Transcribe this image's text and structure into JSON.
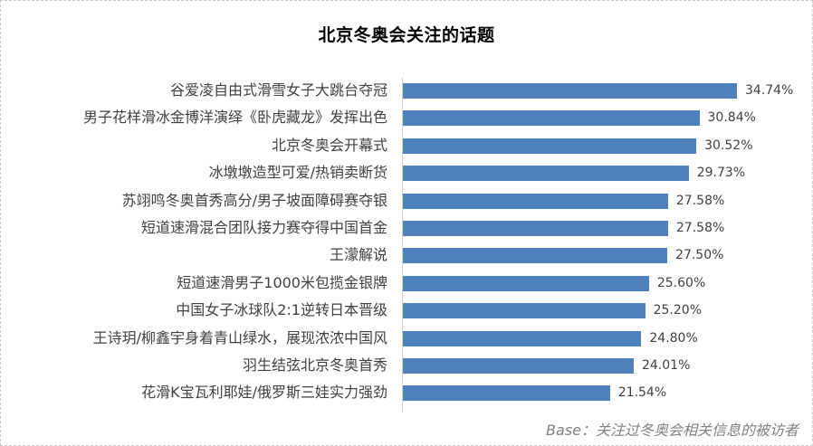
{
  "chart_data": {
    "type": "bar",
    "orientation": "horizontal",
    "title": "北京冬奥会关注的话题",
    "xlabel": "",
    "ylabel": "",
    "unit": "%",
    "grid": false,
    "legend": null,
    "bar_color": "#4f81bd",
    "categories": [
      "谷爱凌自由式滑雪女子大跳台夺冠",
      "男子花样滑冰金博洋演绎《卧虎藏龙》发挥出色",
      "北京冬奥会开幕式",
      "冰墩墩造型可爱/热销卖断货",
      "苏翊鸣冬奥首秀高分/男子坡面障碍赛夺银",
      "短道速滑混合团队接力赛夺得中国首金",
      "王濛解说",
      "短道速滑男子1000米包揽金银牌",
      "中国女子冰球队2:1逆转日本晋级",
      "王诗玥/柳鑫宇身着青山绿水，展现浓浓中国风",
      "羽生结弦北京冬奥首秀",
      "花滑K宝瓦利耶娃/俄罗斯三娃实力强劲"
    ],
    "values": [
      34.74,
      30.84,
      30.52,
      29.73,
      27.58,
      27.58,
      27.5,
      25.6,
      25.2,
      24.8,
      24.01,
      21.54
    ],
    "labels": [
      "34.74%",
      "30.84%",
      "30.52%",
      "29.73%",
      "27.58%",
      "27.58%",
      "27.50%",
      "25.60%",
      "25.20%",
      "24.80%",
      "24.01%",
      "21.54%"
    ],
    "annotation": "Base：关注过冬奥会相关信息的被访者"
  },
  "title": "北京冬奥会关注的话题",
  "rows": [
    {
      "label": "谷爱凌自由式滑雪女子大跳台夺冠",
      "value": "34.74%"
    },
    {
      "label": "男子花样滑冰金博洋演绎《卧虎藏龙》发挥出色",
      "value": "30.84%"
    },
    {
      "label": "北京冬奥会开幕式",
      "value": "30.52%"
    },
    {
      "label": "冰墩墩造型可爱/热销卖断货",
      "value": "29.73%"
    },
    {
      "label": "苏翊鸣冬奥首秀高分/男子坡面障碍赛夺银",
      "value": "27.58%"
    },
    {
      "label": "短道速滑混合团队接力赛夺得中国首金",
      "value": "27.58%"
    },
    {
      "label": "王濛解说",
      "value": "27.50%"
    },
    {
      "label": "短道速滑男子1000米包揽金银牌",
      "value": "25.60%"
    },
    {
      "label": "中国女子冰球队2:1逆转日本晋级",
      "value": "25.20%"
    },
    {
      "label": "王诗玥/柳鑫宇身着青山绿水，展现浓浓中国风",
      "value": "24.80%"
    },
    {
      "label": "羽生结弦北京冬奥首秀",
      "value": "24.01%"
    },
    {
      "label": "花滑K宝瓦利耶娃/俄罗斯三娃实力强劲",
      "value": "21.54%"
    }
  ],
  "footer": {
    "base_note": "Base：关注过冬奥会相关信息的被访者"
  }
}
